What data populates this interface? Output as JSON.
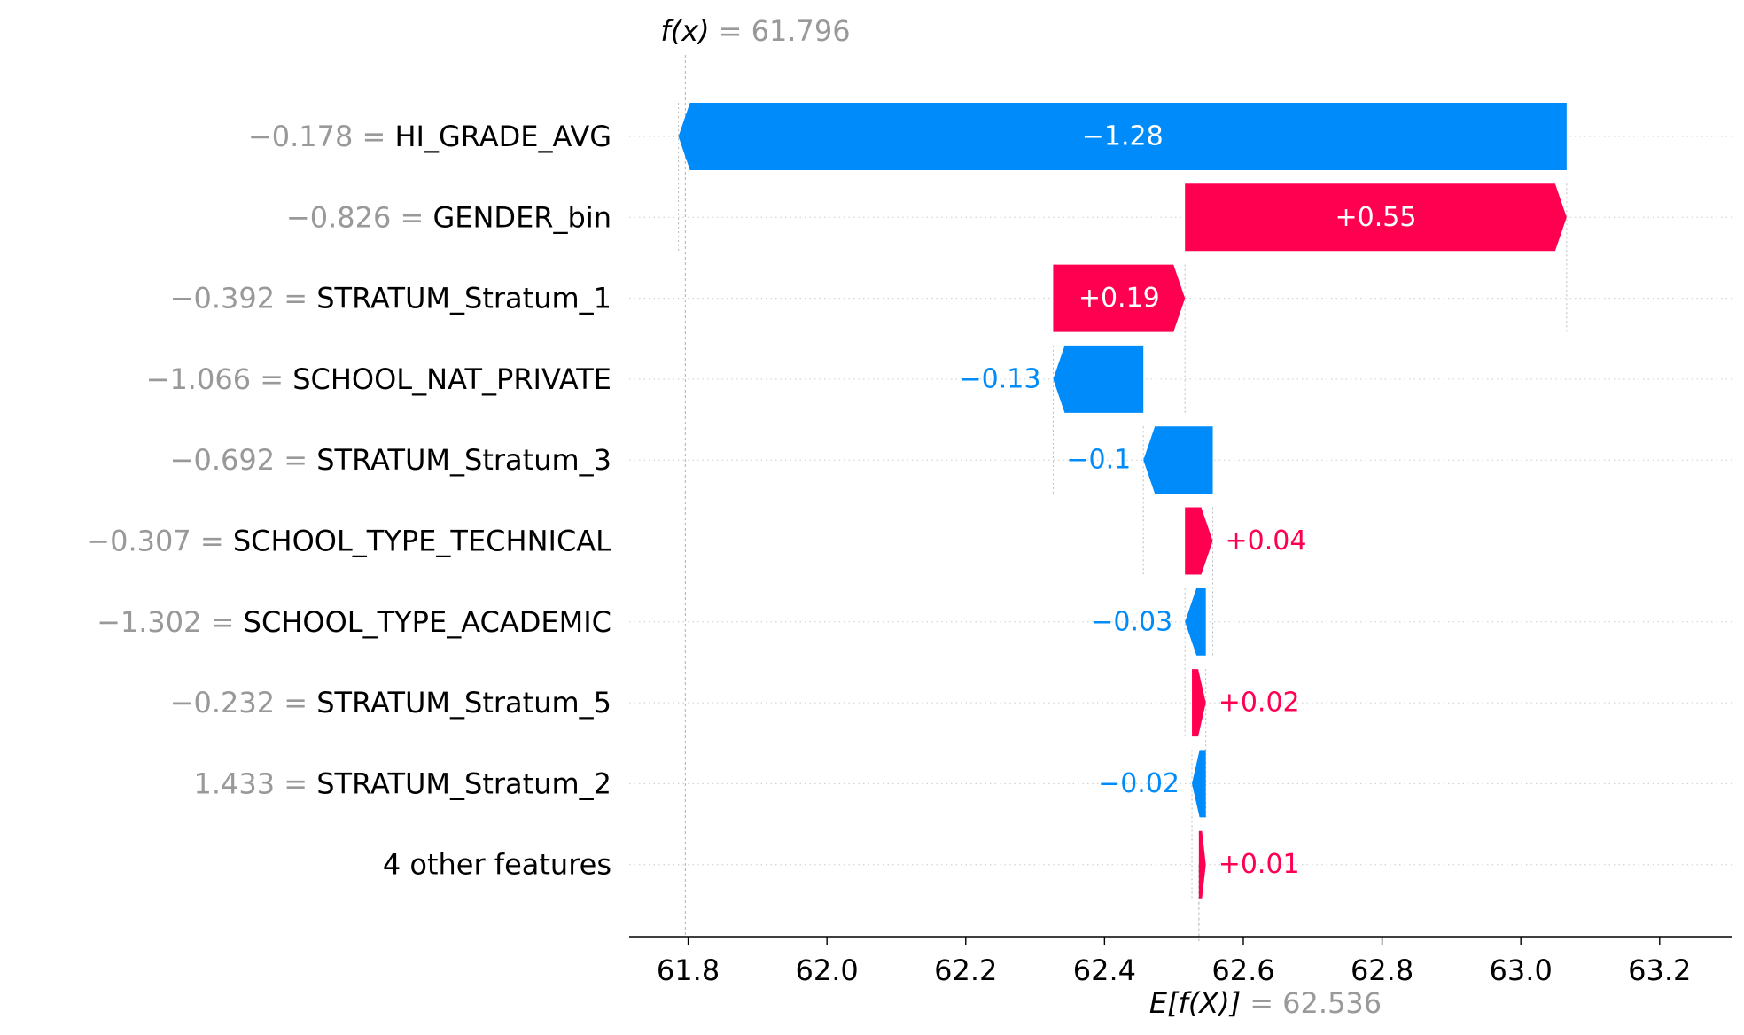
{
  "chart_data": {
    "type": "bar",
    "subtype": "waterfall",
    "title": "",
    "xlabel": "",
    "ylabel": "",
    "xlim": [
      61.715,
      63.305
    ],
    "xticks": [
      "61.8",
      "62.0",
      "62.2",
      "62.4",
      "62.6",
      "62.8",
      "63.0",
      "63.2"
    ],
    "grid": "horizontal dotted row guides",
    "fx": {
      "label": "f(x)",
      "value_text": "= 61.796",
      "value": 61.796
    },
    "base": {
      "label": "E[f(X)]",
      "value_text": "= 62.536",
      "value": 62.536
    },
    "colors": {
      "positive": "#ff0051",
      "negative": "#008bfb",
      "muted": "#999999",
      "text": "#000000"
    },
    "features": [
      {
        "value_text": "−0.178",
        "name": "HI_GRADE_AVG",
        "contribution": -1.28,
        "label": "−1.28"
      },
      {
        "value_text": "−0.826",
        "name": "GENDER_bin",
        "contribution": 0.55,
        "label": "+0.55"
      },
      {
        "value_text": "−0.392",
        "name": "STRATUM_Stratum_1",
        "contribution": 0.19,
        "label": "+0.19"
      },
      {
        "value_text": "−1.066",
        "name": "SCHOOL_NAT_PRIVATE",
        "contribution": -0.13,
        "label": "−0.13"
      },
      {
        "value_text": "−0.692",
        "name": "STRATUM_Stratum_3",
        "contribution": -0.1,
        "label": "−0.1"
      },
      {
        "value_text": "−0.307",
        "name": "SCHOOL_TYPE_TECHNICAL",
        "contribution": 0.04,
        "label": "+0.04"
      },
      {
        "value_text": "−1.302",
        "name": "SCHOOL_TYPE_ACADEMIC",
        "contribution": -0.03,
        "label": "−0.03"
      },
      {
        "value_text": "−0.232",
        "name": "STRATUM_Stratum_5",
        "contribution": 0.02,
        "label": "+0.02"
      },
      {
        "value_text": "1.433",
        "name": "STRATUM_Stratum_2",
        "contribution": -0.02,
        "label": "−0.02"
      },
      {
        "value_text": "",
        "name": "4 other features",
        "contribution": 0.01,
        "label": "+0.01"
      }
    ]
  }
}
